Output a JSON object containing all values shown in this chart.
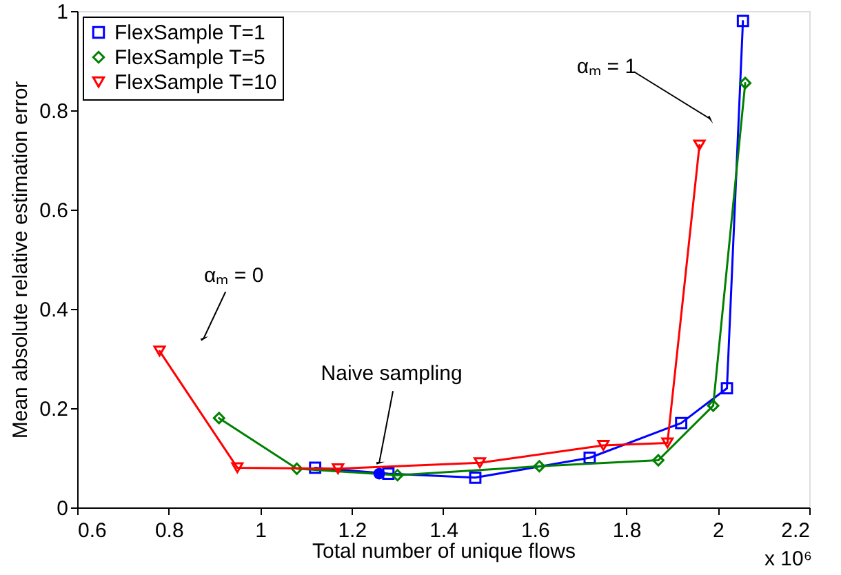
{
  "chart_data": {
    "type": "line",
    "xlabel": "Total number of unique flows",
    "ylabel": "Mean absolute relative estimation error",
    "xlim": [
      0.6,
      2.2
    ],
    "xticks": [
      0.6,
      0.8,
      1,
      1.2,
      1.4,
      1.6,
      1.8,
      2,
      2.2
    ],
    "ylim": [
      0,
      1
    ],
    "yticks": [
      0,
      0.2,
      0.4,
      0.6,
      0.8,
      1
    ],
    "grid": false,
    "legend": "top left",
    "line_style": "solid",
    "series": [
      {
        "name": "FlexSample T=1",
        "color": "#0000ff",
        "marker": "square",
        "x": [
          1.12,
          1.28,
          1.47,
          1.72,
          1.92,
          2.02,
          2.055
        ],
        "values": [
          0.08,
          0.068,
          0.06,
          0.1,
          0.17,
          0.24,
          0.98
        ]
      },
      {
        "name": "FlexSample T=5",
        "color": "#008000",
        "marker": "diamond",
        "x": [
          0.91,
          1.08,
          1.3,
          1.61,
          1.87,
          1.99,
          2.06
        ],
        "values": [
          0.18,
          0.078,
          0.065,
          0.083,
          0.095,
          0.205,
          0.855
        ]
      },
      {
        "name": "FlexSample T=10",
        "color": "#ff0000",
        "marker": "triangle",
        "x": [
          0.78,
          0.95,
          1.17,
          1.48,
          1.75,
          1.89,
          1.96
        ],
        "values": [
          0.315,
          0.08,
          0.078,
          0.09,
          0.125,
          0.13,
          0.73
        ]
      },
      {
        "type": "scatter",
        "color": "#0000ff",
        "marker": "circle",
        "x": [
          1.26
        ],
        "values": [
          0.068
        ]
      }
    ],
    "annotations": [
      {
        "text": "αₘ = 0",
        "x": 0.876,
        "y": 0.34
      },
      {
        "text": "αₘ = 1",
        "x": 1.983,
        "y": 0.783
      },
      {
        "text": "Naive sampling",
        "x": 1.26,
        "y": 0.09
      },
      "x 10⁶"
    ]
  }
}
